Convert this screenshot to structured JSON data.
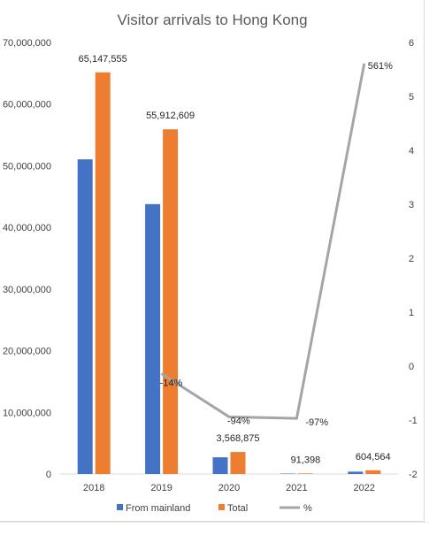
{
  "chart_data": {
    "type": "bar",
    "title": "Visitor arrivals to Hong Kong",
    "categories": [
      "2018",
      "2019",
      "2020",
      "2021",
      "2022"
    ],
    "series": [
      {
        "name": "From mainland",
        "kind": "bar",
        "axis": "left",
        "color": "#4472c4",
        "values": [
          51038000,
          43775000,
          2706000,
          65700,
          380000
        ]
      },
      {
        "name": "Total",
        "kind": "bar",
        "axis": "left",
        "color": "#ed7d31",
        "values": [
          65147555,
          55912609,
          3568875,
          91398,
          604564
        ]
      },
      {
        "name": "%",
        "kind": "line",
        "axis": "right",
        "color": "#a5a5a5",
        "values": [
          null,
          -0.14,
          -0.94,
          -0.97,
          5.61
        ]
      }
    ],
    "data_labels": {
      "Total": [
        "65,147,555",
        "55,912,609",
        "3,568,875",
        "91,398",
        "604,564"
      ],
      "%": [
        "",
        "-14%",
        "-94%",
        "-97%",
        "561%"
      ]
    },
    "y_left": {
      "ylim": [
        0,
        70000000
      ],
      "ticks": [
        0,
        10000000,
        20000000,
        30000000,
        40000000,
        50000000,
        60000000,
        70000000
      ],
      "tick_labels": [
        "0",
        "10,000,000",
        "20,000,000",
        "30,000,000",
        "40,000,000",
        "50,000,000",
        "60,000,000",
        "70,000,000"
      ]
    },
    "y_right": {
      "ylim": [
        -2,
        6
      ],
      "ticks": [
        -2,
        -1,
        0,
        1,
        2,
        3,
        4,
        5,
        6
      ],
      "tick_labels": [
        "-2",
        "-1",
        "0",
        "1",
        "2",
        "3",
        "4",
        "5",
        "6"
      ]
    },
    "grid": false,
    "legend": "bottom"
  }
}
